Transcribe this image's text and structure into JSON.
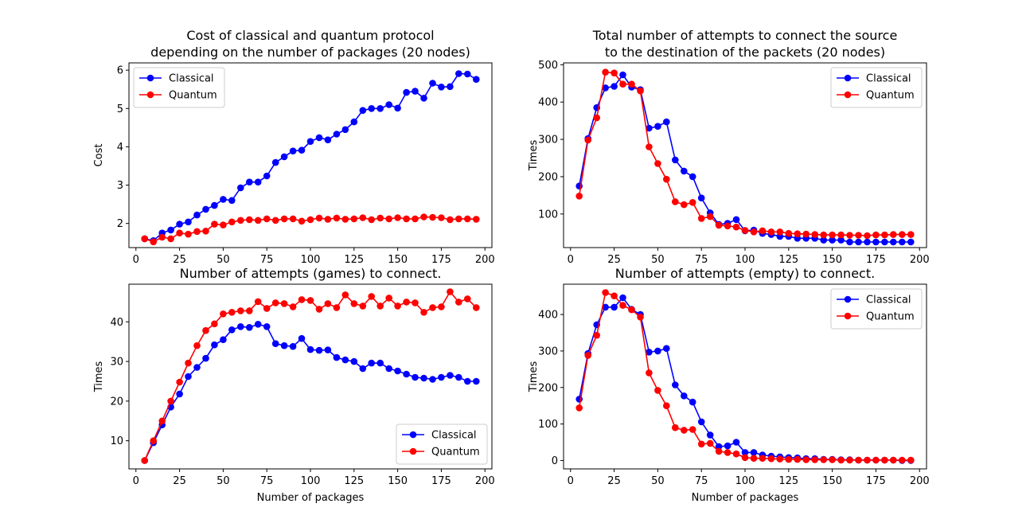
{
  "chart_data": [
    {
      "type": "line",
      "title_lines": [
        "Cost of classical and quantum protocol",
        "depending on the number of packages (20 nodes)"
      ],
      "xlabel": "",
      "ylabel": "Cost",
      "xlim": [
        -4,
        204
      ],
      "ylim": [
        1.37,
        6.19
      ],
      "xticks": [
        0,
        25,
        50,
        75,
        100,
        125,
        150,
        175,
        200
      ],
      "yticks": [
        2,
        3,
        4,
        5,
        6
      ],
      "legend": "top-left",
      "x": [
        5,
        10,
        15,
        20,
        25,
        30,
        35,
        40,
        45,
        50,
        55,
        60,
        65,
        70,
        75,
        80,
        85,
        90,
        95,
        100,
        105,
        110,
        115,
        120,
        125,
        130,
        135,
        140,
        145,
        150,
        155,
        160,
        165,
        170,
        175,
        180,
        185,
        190,
        195
      ],
      "series": [
        {
          "name": "Classical",
          "color": "#0000ff",
          "values": [
            1.6,
            1.55,
            1.75,
            1.83,
            1.98,
            2.04,
            2.22,
            2.37,
            2.47,
            2.63,
            2.6,
            2.93,
            3.08,
            3.08,
            3.24,
            3.59,
            3.74,
            3.89,
            3.91,
            4.14,
            4.24,
            4.18,
            4.33,
            4.45,
            4.65,
            4.95,
            5.0,
            5.0,
            5.1,
            5.01,
            5.42,
            5.45,
            5.27,
            5.66,
            5.56,
            5.57,
            5.91,
            5.9,
            5.76
          ]
        },
        {
          "name": "Quantum",
          "color": "#ff0000",
          "values": [
            1.6,
            1.52,
            1.64,
            1.6,
            1.75,
            1.72,
            1.79,
            1.8,
            1.98,
            1.96,
            2.04,
            2.08,
            2.1,
            2.08,
            2.12,
            2.08,
            2.12,
            2.12,
            2.06,
            2.1,
            2.14,
            2.11,
            2.14,
            2.11,
            2.12,
            2.15,
            2.1,
            2.14,
            2.12,
            2.15,
            2.12,
            2.12,
            2.17,
            2.16,
            2.15,
            2.1,
            2.12,
            2.12,
            2.11
          ]
        }
      ]
    },
    {
      "type": "line",
      "title_lines": [
        "Total number of attempts to connect the source",
        "to the destination of the packets (20 nodes)"
      ],
      "xlabel": "",
      "ylabel": "Times",
      "xlim": [
        -4,
        204
      ],
      "ylim": [
        10,
        505
      ],
      "xticks": [
        0,
        25,
        50,
        75,
        100,
        125,
        150,
        175,
        200
      ],
      "yticks": [
        100,
        200,
        300,
        400,
        500
      ],
      "legend": "top-right",
      "x": [
        5,
        10,
        15,
        20,
        25,
        30,
        35,
        40,
        45,
        50,
        55,
        60,
        65,
        70,
        75,
        80,
        85,
        90,
        95,
        100,
        105,
        110,
        115,
        120,
        125,
        130,
        135,
        140,
        145,
        150,
        155,
        160,
        165,
        170,
        175,
        180,
        185,
        190,
        195
      ],
      "series": [
        {
          "name": "Classical",
          "color": "#0000ff",
          "values": [
            175,
            302,
            385,
            438,
            442,
            473,
            440,
            433,
            330,
            335,
            347,
            245,
            215,
            200,
            143,
            103,
            72,
            75,
            85,
            55,
            57,
            48,
            45,
            40,
            40,
            35,
            35,
            35,
            30,
            30,
            30,
            25,
            25,
            25,
            25,
            25,
            25,
            25,
            25
          ]
        },
        {
          "name": "Quantum",
          "color": "#ff0000",
          "values": [
            148,
            298,
            358,
            480,
            478,
            448,
            448,
            430,
            280,
            235,
            193,
            133,
            125,
            131,
            88,
            93,
            70,
            68,
            65,
            56,
            52,
            55,
            52,
            52,
            48,
            47,
            46,
            45,
            44,
            44,
            44,
            43,
            43,
            42,
            44,
            44,
            45,
            45,
            45
          ]
        }
      ]
    },
    {
      "type": "line",
      "title_lines": [
        "Number of attempts (games) to connect."
      ],
      "xlabel": "Number of packages",
      "ylabel": "Times",
      "xlim": [
        -4,
        204
      ],
      "ylim": [
        2.9,
        49.5
      ],
      "xticks": [
        0,
        25,
        50,
        75,
        100,
        125,
        150,
        175,
        200
      ],
      "yticks": [
        10,
        20,
        30,
        40
      ],
      "legend": "bottom-right",
      "x": [
        5,
        10,
        15,
        20,
        25,
        30,
        35,
        40,
        45,
        50,
        55,
        60,
        65,
        70,
        75,
        80,
        85,
        90,
        95,
        100,
        105,
        110,
        115,
        120,
        125,
        130,
        135,
        140,
        145,
        150,
        155,
        160,
        165,
        170,
        175,
        180,
        185,
        190,
        195
      ],
      "series": [
        {
          "name": "Classical",
          "color": "#0000ff",
          "values": [
            5,
            9.5,
            14,
            18.5,
            21.8,
            26.2,
            28.5,
            30.8,
            34.2,
            35.5,
            38,
            38.8,
            38.6,
            39.4,
            38.8,
            34.5,
            34,
            33.8,
            35.8,
            33,
            32.8,
            32.9,
            31,
            30.4,
            30,
            28.2,
            29.6,
            29.6,
            28.2,
            27.6,
            26.8,
            26,
            25.8,
            25.5,
            26,
            26.5,
            26,
            25,
            25
          ]
        },
        {
          "name": "Quantum",
          "color": "#ff0000",
          "values": [
            5,
            10,
            15,
            20,
            24.8,
            29.6,
            34,
            37.8,
            39.5,
            42,
            42.4,
            42.8,
            42.8,
            45.1,
            43.4,
            44.8,
            44.6,
            43.8,
            45.6,
            45.4,
            43.2,
            44.6,
            43.6,
            46.8,
            44.6,
            44,
            46.4,
            44,
            46,
            44,
            45,
            44.8,
            42.4,
            43.6,
            43.8,
            47.6,
            45,
            45.8,
            43.6
          ]
        }
      ]
    },
    {
      "type": "line",
      "title_lines": [
        "Number of attempts (empty) to connect."
      ],
      "xlabel": "Number of packages",
      "ylabel": "Times",
      "xlim": [
        -4,
        204
      ],
      "ylim": [
        -23,
        483
      ],
      "xticks": [
        0,
        25,
        50,
        75,
        100,
        125,
        150,
        175,
        200
      ],
      "yticks": [
        0,
        100,
        200,
        300,
        400
      ],
      "legend": "top-right",
      "x": [
        5,
        10,
        15,
        20,
        25,
        30,
        35,
        40,
        45,
        50,
        55,
        60,
        65,
        70,
        75,
        80,
        85,
        90,
        95,
        100,
        105,
        110,
        115,
        120,
        125,
        130,
        135,
        140,
        145,
        150,
        155,
        160,
        165,
        170,
        175,
        180,
        185,
        190,
        195
      ],
      "series": [
        {
          "name": "Classical",
          "color": "#0000ff",
          "values": [
            168,
            293,
            372,
            420,
            420,
            446,
            414,
            400,
            297,
            300,
            307,
            207,
            177,
            160,
            106,
            70,
            38,
            40,
            50,
            22,
            22,
            15,
            12,
            10,
            8,
            7,
            5,
            5,
            3,
            3,
            2,
            2,
            1,
            1,
            1,
            1,
            1,
            0,
            0
          ]
        },
        {
          "name": "Quantum",
          "color": "#ff0000",
          "values": [
            144,
            288,
            343,
            460,
            451,
            425,
            413,
            393,
            240,
            192,
            150,
            90,
            83,
            85,
            45,
            47,
            25,
            22,
            18,
            8,
            6,
            6,
            5,
            4,
            3,
            3,
            2,
            2,
            2,
            2,
            1,
            1,
            1,
            1,
            1,
            1,
            1,
            1,
            1
          ]
        }
      ]
    }
  ]
}
